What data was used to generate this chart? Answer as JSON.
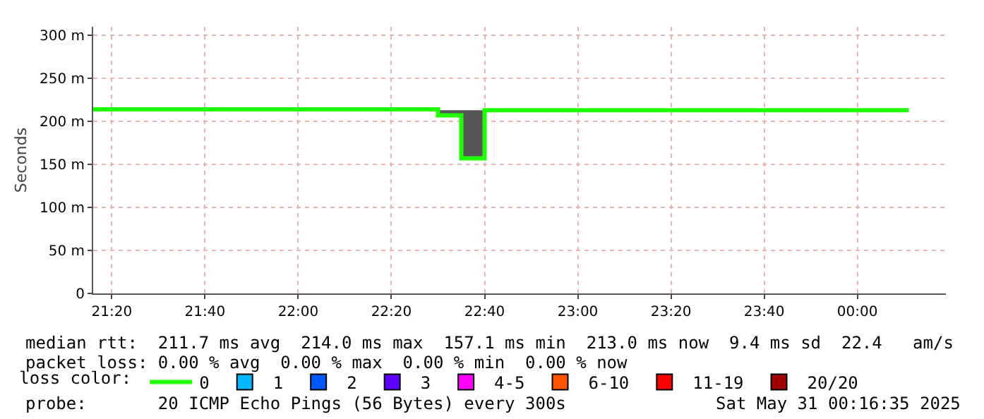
{
  "chart_data": {
    "type": "step",
    "ylabel": "Seconds",
    "x": [
      "2025-05-30T21:16",
      "2025-05-30T22:30",
      "2025-05-30T22:35",
      "2025-05-30T22:40",
      "2025-05-31T00:11"
    ],
    "series": [
      {
        "name": "0",
        "color": "#20ff00",
        "values": [
          214,
          207,
          157,
          213,
          213
        ],
        "lower": [
          213,
          206,
          157,
          212,
          212
        ],
        "upper": [
          216,
          213,
          213,
          214,
          214
        ]
      },
      {
        "name": "1",
        "color": "#00b8ff",
        "values": [
          null,
          null,
          null,
          null,
          null
        ]
      },
      {
        "name": "2",
        "color": "#0059ff",
        "values": [
          null,
          null,
          null,
          null,
          null
        ]
      },
      {
        "name": "3",
        "color": "#5e00ff",
        "values": [
          null,
          null,
          null,
          null,
          null
        ]
      },
      {
        "name": "4-5",
        "color": "#ff00ff",
        "values": [
          null,
          null,
          null,
          null,
          null
        ]
      },
      {
        "name": "6-10",
        "color": "#ff5500",
        "values": [
          null,
          null,
          null,
          null,
          null
        ]
      },
      {
        "name": "11-19",
        "color": "#ff0000",
        "values": [
          null,
          null,
          null,
          null,
          null
        ]
      },
      {
        "name": "20/20",
        "color": "#a10000",
        "values": [
          null,
          null,
          null,
          null,
          null
        ]
      }
    ],
    "legend_title": "loss color:",
    "legend": "bottom",
    "xlim": [
      "2025-05-30T21:16",
      "2025-05-31T00:19"
    ],
    "xticks": [
      {
        "value": "2025-05-30T21:20",
        "label": "21:20"
      },
      {
        "value": "2025-05-30T21:40",
        "label": "21:40"
      },
      {
        "value": "2025-05-30T22:00",
        "label": "22:00"
      },
      {
        "value": "2025-05-30T22:20",
        "label": "22:20"
      },
      {
        "value": "2025-05-30T22:40",
        "label": "22:40"
      },
      {
        "value": "2025-05-30T23:00",
        "label": "23:00"
      },
      {
        "value": "2025-05-30T23:20",
        "label": "23:20"
      },
      {
        "value": "2025-05-30T23:40",
        "label": "23:40"
      },
      {
        "value": "2025-05-31T00:00",
        "label": "00:00"
      }
    ],
    "ylim": [
      0,
      310
    ],
    "yticks": [
      0,
      {
        "value": 50,
        "label": "50 m"
      },
      {
        "value": 100,
        "label": "100 m"
      },
      {
        "value": 150,
        "label": "150 m"
      },
      {
        "value": 200,
        "label": "200 m"
      },
      {
        "value": 250,
        "label": "250 m"
      },
      {
        "value": 300,
        "label": "300 m"
      }
    ],
    "grid": true,
    "annotations": [
      "median rtt:  211.7 ms avg  214.0 ms max  157.1 ms min  213.0 ms now  9.4 ms sd  22.4   am/s",
      "packet loss: 0.00 % avg  0.00 % max  0.00 % min  0.00 % now",
      "probe:       20 ICMP Echo Pings (56 Bytes) every 300s",
      "Sat May 31 00:16:35 2025"
    ]
  }
}
